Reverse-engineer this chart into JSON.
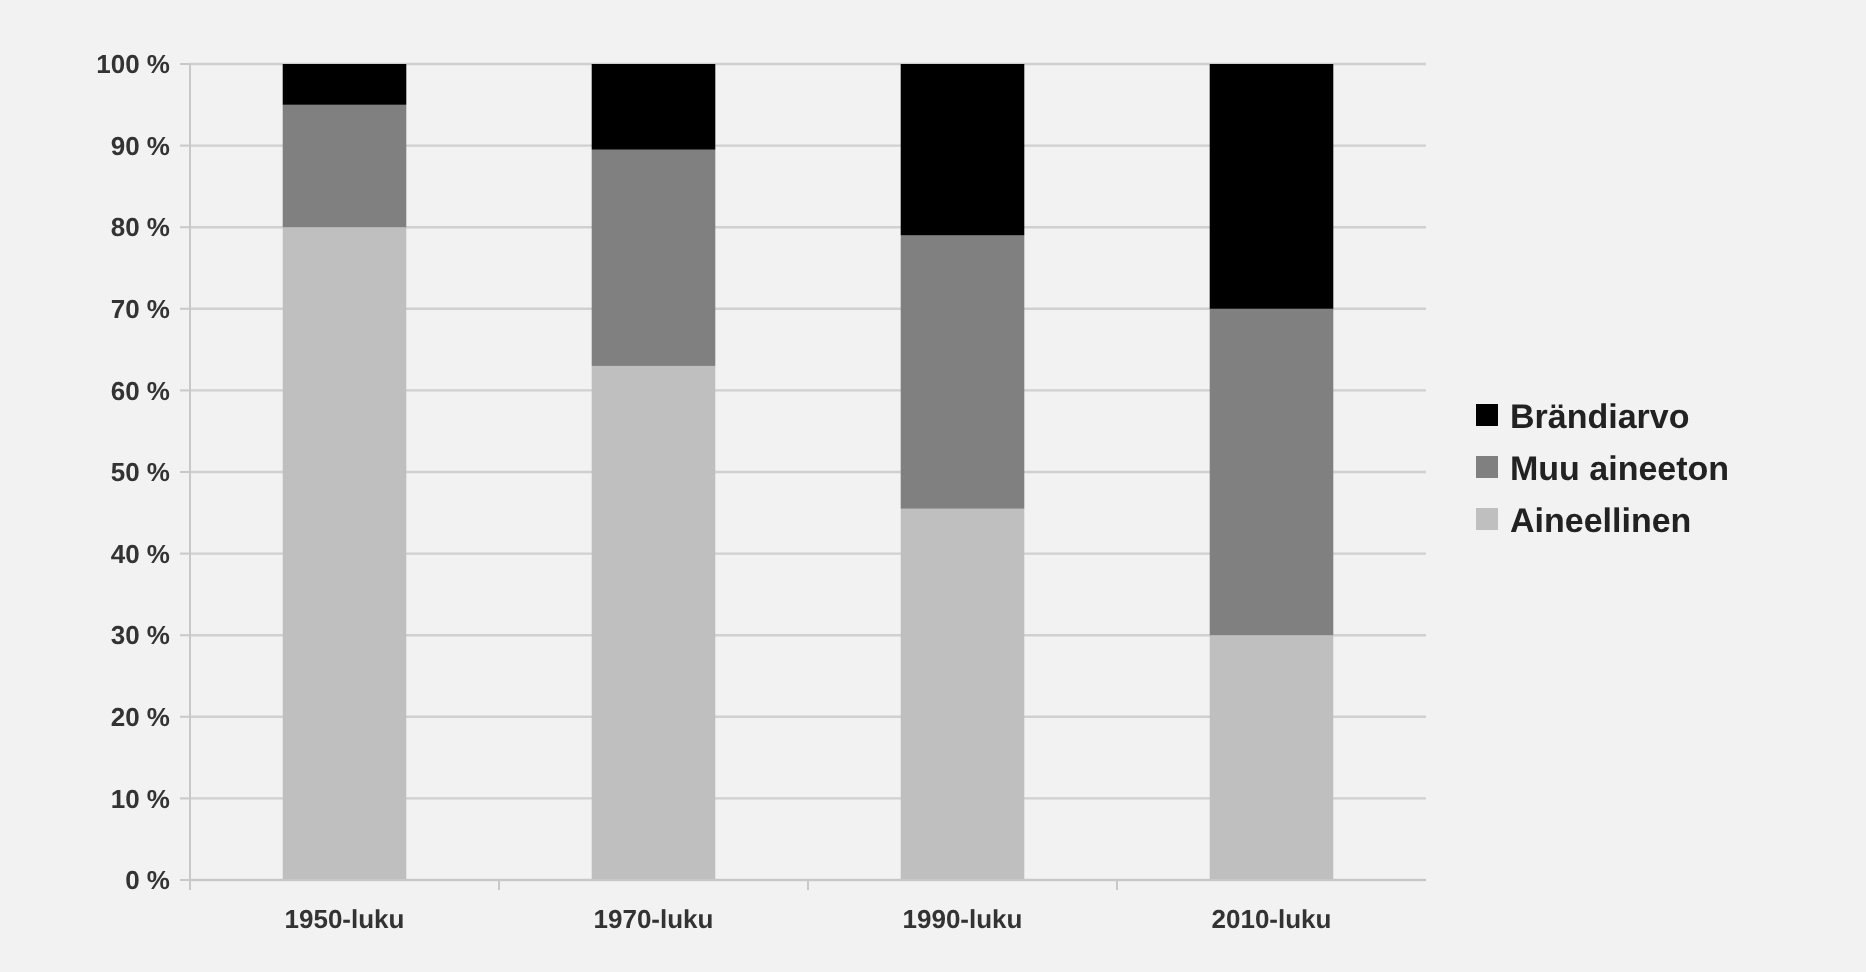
{
  "chart_data": {
    "type": "bar",
    "stacked": true,
    "categories": [
      "1950-luku",
      "1970-luku",
      "1990-luku",
      "2010-luku"
    ],
    "series": [
      {
        "name": "Aineellinen",
        "color": "#bfbfbf",
        "values": [
          80,
          63,
          45.5,
          30
        ]
      },
      {
        "name": "Muu aineeton",
        "color": "#808080",
        "values": [
          15,
          26.5,
          33.5,
          40
        ]
      },
      {
        "name": "Brändiarvo",
        "color": "#000000",
        "values": [
          5,
          10.5,
          21,
          30
        ]
      }
    ],
    "ylim": [
      0,
      100
    ],
    "yticks": [
      {
        "value": 0,
        "label": "0 %"
      },
      {
        "value": 10,
        "label": "10 %"
      },
      {
        "value": 20,
        "label": "20 %"
      },
      {
        "value": 30,
        "label": "30 %"
      },
      {
        "value": 40,
        "label": "40 %"
      },
      {
        "value": 50,
        "label": "50 %"
      },
      {
        "value": 60,
        "label": "60 %"
      },
      {
        "value": 70,
        "label": "70 %"
      },
      {
        "value": 80,
        "label": "80 %"
      },
      {
        "value": 90,
        "label": "90 %"
      },
      {
        "value": 100,
        "label": "100 %"
      }
    ],
    "grid": "y",
    "legend": "right"
  }
}
